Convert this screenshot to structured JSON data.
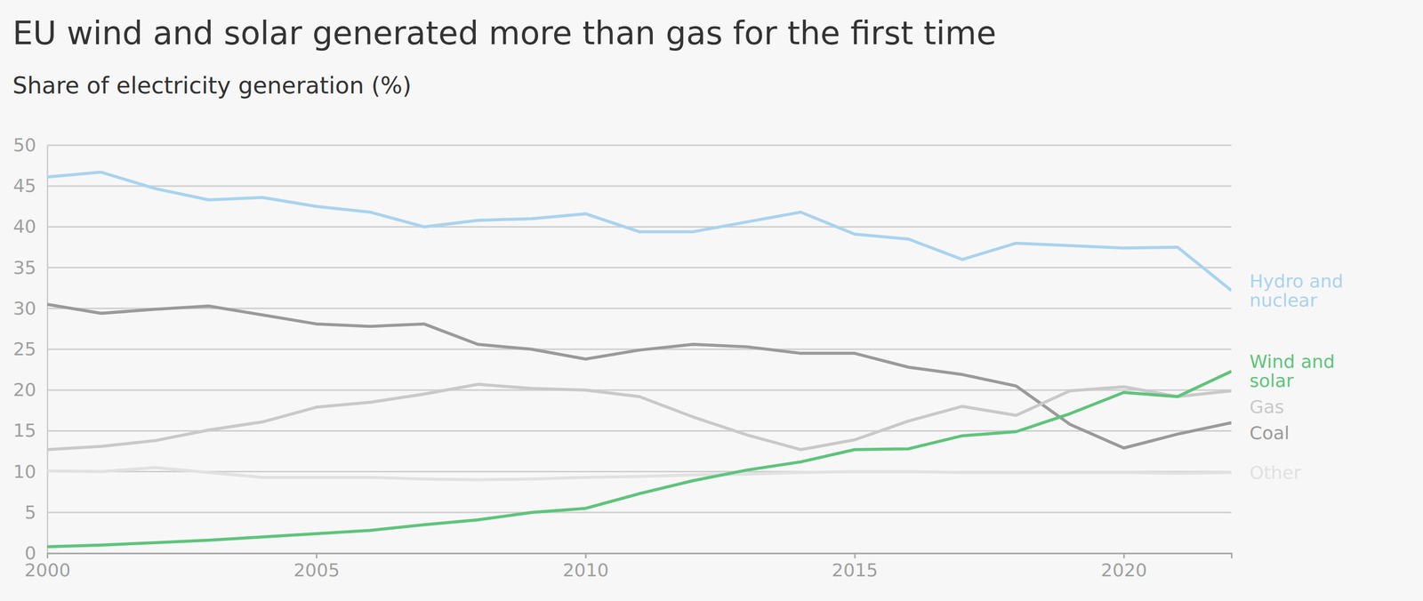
{
  "chart_data": {
    "type": "line",
    "title": "EU wind and solar generated more than gas for the first time",
    "subtitle": "Share of electricity generation (%)",
    "x": [
      2000,
      2001,
      2002,
      2003,
      2004,
      2005,
      2006,
      2007,
      2008,
      2009,
      2010,
      2011,
      2012,
      2013,
      2014,
      2015,
      2016,
      2017,
      2018,
      2019,
      2020,
      2021,
      2022
    ],
    "series": [
      {
        "name": "Hydro and nuclear",
        "color": "#a9d3ef",
        "values": [
          46.1,
          46.7,
          44.7,
          43.3,
          43.6,
          42.5,
          41.8,
          40.0,
          40.8,
          41.0,
          41.6,
          39.4,
          39.4,
          40.6,
          41.8,
          39.1,
          38.5,
          36.0,
          38.0,
          37.7,
          37.4,
          37.5,
          32.2
        ]
      },
      {
        "name": "Wind and solar",
        "color": "#5ec47b",
        "values": [
          0.8,
          1.0,
          1.3,
          1.6,
          2.0,
          2.4,
          2.8,
          3.5,
          4.1,
          5.0,
          5.5,
          7.3,
          8.9,
          10.2,
          11.2,
          12.7,
          12.8,
          14.4,
          14.9,
          17.1,
          19.7,
          19.2,
          22.3
        ]
      },
      {
        "name": "Gas",
        "color": "#c9c9c9",
        "values": [
          12.7,
          13.1,
          13.8,
          15.1,
          16.1,
          17.9,
          18.5,
          19.5,
          20.7,
          20.2,
          20.0,
          19.2,
          16.7,
          14.5,
          12.7,
          13.9,
          16.2,
          18.0,
          16.9,
          19.9,
          20.4,
          19.2,
          19.9
        ]
      },
      {
        "name": "Coal",
        "color": "#9a9a9a",
        "values": [
          30.5,
          29.4,
          29.9,
          30.3,
          29.2,
          28.1,
          27.8,
          28.1,
          25.6,
          25.0,
          23.8,
          24.9,
          25.6,
          25.3,
          24.5,
          24.5,
          22.8,
          21.9,
          20.5,
          15.8,
          12.9,
          14.6,
          16.0
        ]
      },
      {
        "name": "Other",
        "color": "#e1e1e1",
        "values": [
          10.1,
          10.0,
          10.5,
          9.9,
          9.3,
          9.3,
          9.3,
          9.1,
          9.0,
          9.1,
          9.3,
          9.4,
          9.6,
          9.7,
          9.9,
          10.0,
          10.0,
          9.9,
          9.9,
          9.9,
          9.9,
          9.8,
          9.9
        ]
      }
    ],
    "xlim": [
      2000,
      2022
    ],
    "xticks": [
      2000,
      2005,
      2010,
      2015,
      2020
    ],
    "ylim": [
      0,
      50
    ],
    "yticks": [
      0,
      5,
      10,
      15,
      20,
      25,
      30,
      35,
      40,
      45,
      50
    ],
    "grid": true
  }
}
